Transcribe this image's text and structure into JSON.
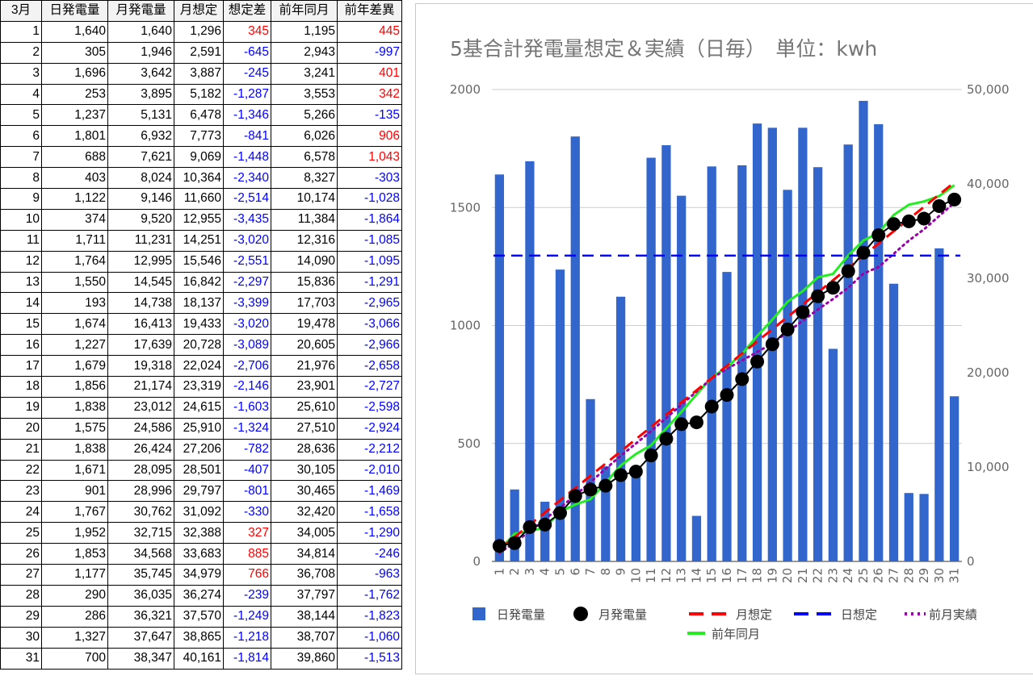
{
  "table": {
    "headers": [
      "3月",
      "日発電量",
      "月発電量",
      "月想定",
      "想定差",
      "前年同月",
      "前年差異"
    ],
    "rows": [
      [
        "1",
        "1,640",
        "1,640",
        "1,296",
        "345",
        "1,195",
        "445"
      ],
      [
        "2",
        "305",
        "1,946",
        "2,591",
        "-645",
        "2,943",
        "-997"
      ],
      [
        "3",
        "1,696",
        "3,642",
        "3,887",
        "-245",
        "3,241",
        "401"
      ],
      [
        "4",
        "253",
        "3,895",
        "5,182",
        "-1,287",
        "3,553",
        "342"
      ],
      [
        "5",
        "1,237",
        "5,131",
        "6,478",
        "-1,346",
        "5,266",
        "-135"
      ],
      [
        "6",
        "1,801",
        "6,932",
        "7,773",
        "-841",
        "6,026",
        "906"
      ],
      [
        "7",
        "688",
        "7,621",
        "9,069",
        "-1,448",
        "6,578",
        "1,043"
      ],
      [
        "8",
        "403",
        "8,024",
        "10,364",
        "-2,340",
        "8,327",
        "-303"
      ],
      [
        "9",
        "1,122",
        "9,146",
        "11,660",
        "-2,514",
        "10,174",
        "-1,028"
      ],
      [
        "10",
        "374",
        "9,520",
        "12,955",
        "-3,435",
        "11,384",
        "-1,864"
      ],
      [
        "11",
        "1,711",
        "11,231",
        "14,251",
        "-3,020",
        "12,316",
        "-1,085"
      ],
      [
        "12",
        "1,764",
        "12,995",
        "15,546",
        "-2,551",
        "14,090",
        "-1,095"
      ],
      [
        "13",
        "1,550",
        "14,545",
        "16,842",
        "-2,297",
        "15,836",
        "-1,291"
      ],
      [
        "14",
        "193",
        "14,738",
        "18,137",
        "-3,399",
        "17,703",
        "-2,965"
      ],
      [
        "15",
        "1,674",
        "16,413",
        "19,433",
        "-3,020",
        "19,478",
        "-3,066"
      ],
      [
        "16",
        "1,227",
        "17,639",
        "20,728",
        "-3,089",
        "20,605",
        "-2,966"
      ],
      [
        "17",
        "1,679",
        "19,318",
        "22,024",
        "-2,706",
        "21,976",
        "-2,658"
      ],
      [
        "18",
        "1,856",
        "21,174",
        "23,319",
        "-2,146",
        "23,901",
        "-2,727"
      ],
      [
        "19",
        "1,838",
        "23,012",
        "24,615",
        "-1,603",
        "25,610",
        "-2,598"
      ],
      [
        "20",
        "1,575",
        "24,586",
        "25,910",
        "-1,324",
        "27,510",
        "-2,924"
      ],
      [
        "21",
        "1,838",
        "26,424",
        "27,206",
        "-782",
        "28,636",
        "-2,212"
      ],
      [
        "22",
        "1,671",
        "28,095",
        "28,501",
        "-407",
        "30,105",
        "-2,010"
      ],
      [
        "23",
        "901",
        "28,996",
        "29,797",
        "-801",
        "30,465",
        "-1,469"
      ],
      [
        "24",
        "1,767",
        "30,762",
        "31,092",
        "-330",
        "32,420",
        "-1,658"
      ],
      [
        "25",
        "1,952",
        "32,715",
        "32,388",
        "327",
        "34,005",
        "-1,290"
      ],
      [
        "26",
        "1,853",
        "34,568",
        "33,683",
        "885",
        "34,814",
        "-246"
      ],
      [
        "27",
        "1,177",
        "35,745",
        "34,979",
        "766",
        "36,708",
        "-963"
      ],
      [
        "28",
        "290",
        "36,035",
        "36,274",
        "-239",
        "37,797",
        "-1,762"
      ],
      [
        "29",
        "286",
        "36,321",
        "37,570",
        "-1,249",
        "38,144",
        "-1,823"
      ],
      [
        "30",
        "1,327",
        "37,647",
        "38,865",
        "-1,218",
        "38,707",
        "-1,060"
      ],
      [
        "31",
        "700",
        "38,347",
        "40,161",
        "-1,814",
        "39,860",
        "-1,513"
      ]
    ],
    "positive_color": "#ff0000",
    "negative_color": "#0000ff"
  },
  "chart_data": {
    "type": "bar",
    "title": "5基合計発電量想定＆実績（日毎）　単位：kwh",
    "x": [
      1,
      2,
      3,
      4,
      5,
      6,
      7,
      8,
      9,
      10,
      11,
      12,
      13,
      14,
      15,
      16,
      17,
      18,
      19,
      20,
      21,
      22,
      23,
      24,
      25,
      26,
      27,
      28,
      29,
      30,
      31
    ],
    "x_tick_labels": [
      "1",
      "2",
      "3",
      "4",
      "5",
      "6",
      "7",
      "8",
      "9",
      "10",
      "11",
      "12",
      "13",
      "14",
      "15",
      "16",
      "17",
      "18",
      "19",
      "20",
      "21",
      "22",
      "23",
      "24",
      "25",
      "26",
      "27",
      "28",
      "29",
      "30",
      "31"
    ],
    "left_axis": {
      "range": [
        0,
        2000
      ],
      "ticks": [
        0,
        500,
        1000,
        1500,
        2000
      ],
      "tick_labels": [
        "0",
        "500",
        "1000",
        "1500",
        "2000"
      ]
    },
    "right_axis": {
      "range": [
        0,
        50000
      ],
      "ticks": [
        0,
        10000,
        20000,
        30000,
        40000,
        50000
      ],
      "tick_labels": [
        "0",
        "10,000",
        "20,000",
        "30,000",
        "40,000",
        "50,000"
      ]
    },
    "grid": true,
    "legend_position": "bottom",
    "series": [
      {
        "name": "日発電量",
        "kind": "bar",
        "axis": "left",
        "color": "#3366cc",
        "values": [
          1640,
          305,
          1696,
          253,
          1237,
          1801,
          688,
          403,
          1122,
          374,
          1711,
          1764,
          1550,
          193,
          1674,
          1227,
          1679,
          1856,
          1838,
          1575,
          1838,
          1671,
          901,
          1767,
          1952,
          1853,
          1177,
          290,
          286,
          1327,
          700
        ]
      },
      {
        "name": "月発電量",
        "kind": "line-marker",
        "axis": "right",
        "color": "#000000",
        "values": [
          1640,
          1946,
          3642,
          3895,
          5131,
          6932,
          7621,
          8024,
          9146,
          9520,
          11231,
          12995,
          14545,
          14738,
          16413,
          17639,
          19318,
          21174,
          23012,
          24586,
          26424,
          28095,
          28996,
          30762,
          32715,
          34568,
          35745,
          36035,
          36321,
          37647,
          38347
        ]
      },
      {
        "name": "月想定",
        "kind": "dashed-line",
        "axis": "right",
        "color": "#ff0000",
        "values": [
          1296,
          2591,
          3887,
          5182,
          6478,
          7773,
          9069,
          10364,
          11660,
          12955,
          14251,
          15546,
          16842,
          18137,
          19433,
          20728,
          22024,
          23319,
          24615,
          25910,
          27206,
          28501,
          29797,
          31092,
          32388,
          33683,
          34979,
          36274,
          37570,
          38865,
          40161
        ]
      },
      {
        "name": "日想定",
        "kind": "dashed-line",
        "axis": "left",
        "color": "#0000ff",
        "values": [
          1296,
          1296,
          1296,
          1296,
          1296,
          1296,
          1296,
          1296,
          1296,
          1296,
          1296,
          1296,
          1296,
          1296,
          1296,
          1296,
          1296,
          1296,
          1296,
          1296,
          1296,
          1296,
          1296,
          1296,
          1296,
          1296,
          1296,
          1296,
          1296,
          1296,
          1296
        ]
      },
      {
        "name": "前月実績",
        "kind": "dotted-line",
        "axis": "right",
        "color": "#9900aa",
        "values": [
          900,
          2000,
          3200,
          4500,
          5700,
          7000,
          8400,
          9800,
          11200,
          12500,
          13800,
          15200,
          16600,
          18000,
          19400,
          20400,
          21300,
          22200,
          23100,
          24300,
          25500,
          26700,
          27800,
          29000,
          30500,
          31200,
          32600,
          34000,
          35200,
          36600,
          38000
        ]
      },
      {
        "name": "前年同月",
        "kind": "line",
        "axis": "right",
        "color": "#22ee22",
        "values": [
          1195,
          2943,
          3241,
          3553,
          5266,
          6026,
          6578,
          8327,
          10174,
          11384,
          12316,
          14090,
          15836,
          17703,
          19478,
          20605,
          21976,
          23901,
          25610,
          27510,
          28636,
          30105,
          30465,
          32420,
          34005,
          34814,
          36708,
          37797,
          38144,
          38707,
          39860
        ]
      }
    ]
  }
}
